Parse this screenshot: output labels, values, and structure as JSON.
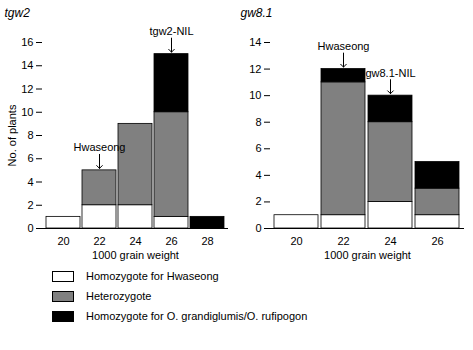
{
  "chart_data": [
    {
      "type": "bar",
      "title": "tgw2",
      "xlabel": "1000 grain weight",
      "ylabel": "No. of plants",
      "categories": [
        20,
        22,
        24,
        26,
        28
      ],
      "stacked": true,
      "legend": "bottom",
      "ylim": [
        0,
        16
      ],
      "yticks": [
        0,
        2,
        4,
        6,
        8,
        10,
        12,
        14,
        16
      ],
      "series": [
        {
          "name": "Homozygote for Hwaseong",
          "color": "#ffffff",
          "values": [
            1,
            2,
            2,
            1,
            0
          ]
        },
        {
          "name": "Heterozygote",
          "color": "#808080",
          "values": [
            0,
            3,
            7,
            9,
            0
          ]
        },
        {
          "name": "Homozygote for O. grandiglumis/O. rufipogon",
          "color": "#000000",
          "values": [
            0,
            0,
            0,
            5,
            1
          ]
        }
      ],
      "annotations": [
        {
          "text": "Hwaseong",
          "x": 22
        },
        {
          "text": "tgw2-NIL",
          "x": 26
        }
      ]
    },
    {
      "type": "bar",
      "title": "gw8.1",
      "xlabel": "1000 grain weight",
      "categories": [
        20,
        22,
        24,
        26
      ],
      "stacked": true,
      "legend": "bottom",
      "ylim": [
        0,
        14
      ],
      "yticks": [
        0,
        2,
        4,
        6,
        8,
        10,
        12,
        14
      ],
      "series": [
        {
          "name": "Homozygote for Hwaseong",
          "color": "#ffffff",
          "values": [
            1,
            1,
            2,
            1
          ]
        },
        {
          "name": "Heterozygote",
          "color": "#808080",
          "values": [
            0,
            10,
            6,
            2
          ]
        },
        {
          "name": "Homozygote for O. grandiglumis/O. rufipogon",
          "color": "#000000",
          "values": [
            0,
            1,
            2,
            2
          ]
        }
      ],
      "annotations": [
        {
          "text": "Hwaseong",
          "x": 22
        },
        {
          "text": "gw8.1-NIL",
          "x": 24
        }
      ]
    }
  ]
}
